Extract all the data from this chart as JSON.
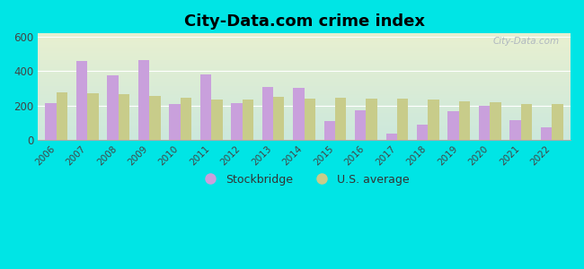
{
  "title": "City-Data.com crime index",
  "years": [
    2006,
    2007,
    2008,
    2009,
    2010,
    2011,
    2012,
    2013,
    2014,
    2015,
    2016,
    2017,
    2018,
    2019,
    2020,
    2021,
    2022
  ],
  "stockbridge": [
    215,
    460,
    375,
    465,
    210,
    382,
    215,
    310,
    305,
    108,
    175,
    38,
    90,
    170,
    200,
    115,
    75
  ],
  "us_average": [
    275,
    270,
    265,
    258,
    245,
    237,
    233,
    252,
    240,
    245,
    243,
    242,
    238,
    225,
    218,
    210,
    212
  ],
  "stockbridge_color": "#c9a0dc",
  "us_average_color": "#c8cc8a",
  "bg_color_topleft": "#e8f0d0",
  "bg_color_topright": "#ddeedd",
  "bg_color_bottom": "#c8e8e0",
  "outer_bg": "#00e5e5",
  "ylim": [
    0,
    620
  ],
  "yticks": [
    0,
    200,
    400,
    600
  ],
  "title_fontsize": 13,
  "legend_stockbridge": "Stockbridge",
  "legend_us": "U.S. average",
  "bar_width": 0.36,
  "watermark": "City-Data.com"
}
